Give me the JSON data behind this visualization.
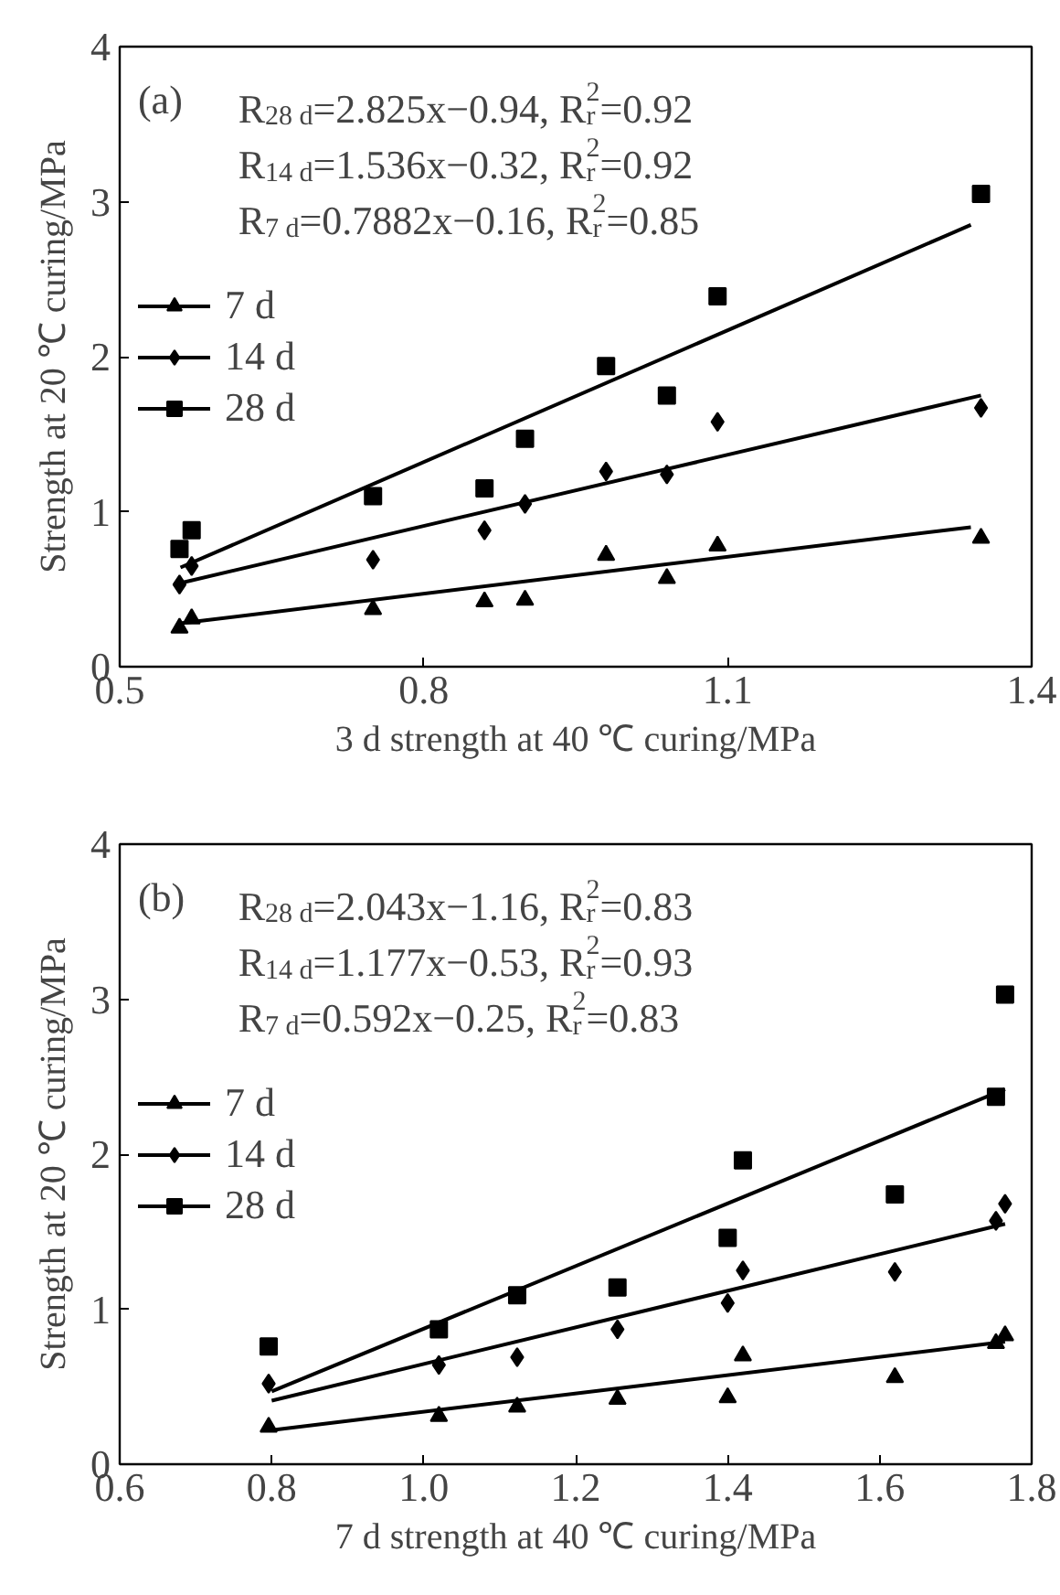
{
  "chart_data": [
    {
      "type": "scatter",
      "xlabel": "3 d strength at 40 ℃ curing/MPa",
      "ylabel": "Strength at 20 ℃ curing/MPa",
      "annotations": [
        "(a)",
        "R$_{28 d}$=2.825x−0.94, R$_{r}$$^{2}$=0.92",
        "R$_{14 d}$=1.536x−0.32, R$_{r}$$^{2}$=0.92",
        "R$_{7 d}$=0.7882x−0.16, R$_{r}$$^{2}$=0.85"
      ],
      "x": [
        0.559,
        0.571,
        0.75,
        0.86,
        0.9,
        0.98,
        1.04,
        1.09,
        1.35
      ],
      "series": [
        {
          "name": "7 d",
          "color": "#000000",
          "marker": "triangle",
          "values": [
            0.25,
            0.31,
            0.37,
            0.42,
            0.43,
            0.72,
            0.57,
            0.78,
            0.83
          ]
        },
        {
          "type": "line",
          "color": "#000000",
          "x": [
            0.56,
            1.34
          ],
          "values": [
            0.28,
            0.9
          ]
        },
        {
          "name": "14 d",
          "color": "#000000",
          "marker": "diamond",
          "values": [
            0.53,
            0.65,
            0.69,
            0.88,
            1.05,
            1.26,
            1.24,
            1.58,
            1.67
          ]
        },
        {
          "type": "line",
          "color": "#000000",
          "x": [
            0.56,
            1.35
          ],
          "values": [
            0.54,
            1.75
          ]
        },
        {
          "name": "28 d",
          "color": "#000000",
          "marker": "square",
          "values": [
            0.76,
            0.88,
            1.1,
            1.15,
            1.47,
            1.94,
            1.75,
            2.39,
            3.05
          ]
        },
        {
          "type": "line",
          "color": "#000000",
          "x": [
            0.56,
            1.34
          ],
          "values": [
            0.64,
            2.85
          ]
        }
      ],
      "xlim": [
        0.5,
        1.4
      ],
      "xticks": [
        0.5,
        0.8,
        1.1,
        1.4
      ],
      "ylim": [
        0,
        4
      ],
      "yticks": [
        0,
        1,
        2,
        3,
        4
      ],
      "grid": false,
      "legend": "left",
      "line_style": "solid"
    },
    {
      "type": "scatter",
      "xlabel": "7 d strength at 40 ℃ curing/MPa",
      "ylabel": "Strength at 20 ℃ curing/MPa",
      "annotations": [
        "(b)",
        "R$_{28 d}$=2.043x−1.16, R$_{r}$$^{2}$=0.83",
        "R$_{14 d}$=1.177x−0.53, R$_{r}$$^{2}$=0.93",
        "R$_{7 d}$=0.592x−0.25, R$_{r}$$^{2}$=0.83"
      ],
      "x": [
        0.796,
        1.02,
        1.123,
        1.255,
        1.4,
        1.42,
        1.62,
        1.753,
        1.765
      ],
      "series": [
        {
          "name": "7 d",
          "color": "#000000",
          "marker": "triangle",
          "values": [
            0.24,
            0.31,
            0.37,
            0.42,
            0.43,
            0.7,
            0.56,
            0.78,
            0.83
          ]
        },
        {
          "type": "line",
          "color": "#000000",
          "x": [
            0.8,
            1.765
          ],
          "values": [
            0.22,
            0.79
          ]
        },
        {
          "name": "14 d",
          "color": "#000000",
          "marker": "diamond",
          "values": [
            0.52,
            0.64,
            0.69,
            0.87,
            1.04,
            1.25,
            1.24,
            1.57,
            1.68
          ]
        },
        {
          "type": "line",
          "color": "#000000",
          "x": [
            0.8,
            1.765
          ],
          "values": [
            0.41,
            1.55
          ]
        },
        {
          "name": "28 d",
          "color": "#000000",
          "marker": "square",
          "values": [
            0.76,
            0.87,
            1.09,
            1.14,
            1.46,
            1.96,
            1.74,
            2.37,
            3.03
          ]
        },
        {
          "type": "line",
          "color": "#000000",
          "x": [
            0.8,
            1.765
          ],
          "values": [
            0.47,
            2.42
          ]
        }
      ],
      "xlim": [
        0.6,
        1.8
      ],
      "xticks": [
        {
          "value": 0.6,
          "label": "0.6"
        },
        {
          "value": 0.8,
          "label": "0.8"
        },
        {
          "value": 1.0,
          "label": "1.0"
        },
        {
          "value": 1.2,
          "label": "1.2"
        },
        {
          "value": 1.4,
          "label": "1.4"
        },
        {
          "value": 1.6,
          "label": "1.6"
        },
        {
          "value": 1.8,
          "label": "1.8"
        }
      ],
      "ylim": [
        0,
        4
      ],
      "yticks": [
        0,
        1,
        2,
        3,
        4
      ],
      "grid": false,
      "legend": "left",
      "line_style": "solid"
    }
  ]
}
